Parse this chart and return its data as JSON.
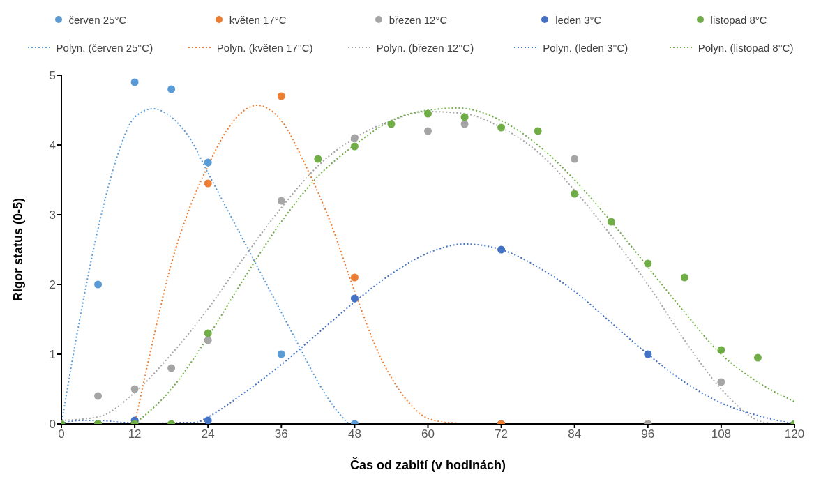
{
  "chart_data": {
    "type": "scatter",
    "xlabel": "Čas od zabití (v hodinách)",
    "ylabel": "Rigor status (0-5)",
    "xlim": [
      0,
      120
    ],
    "xticks": [
      0,
      12,
      24,
      36,
      48,
      60,
      72,
      84,
      96,
      108,
      120
    ],
    "ylim": [
      0,
      5
    ],
    "yticks": [
      0,
      1,
      2,
      3,
      4,
      5
    ],
    "grid": false,
    "legend": "top",
    "marker": "circle",
    "series": [
      {
        "name": "červen 25°C",
        "color": "#5b9bd5",
        "x": [
          6,
          12,
          18,
          24,
          36,
          48,
          72
        ],
        "values": [
          2.0,
          4.9,
          4.8,
          3.75,
          1.0,
          0,
          0
        ]
      },
      {
        "name": "květen 17°C",
        "color": "#ed7d31",
        "x": [
          6,
          24,
          36,
          48,
          72,
          96
        ],
        "values": [
          0,
          3.45,
          4.7,
          2.1,
          0,
          0
        ]
      },
      {
        "name": "březen 12°C",
        "color": "#a5a5a5",
        "x": [
          6,
          12,
          18,
          24,
          36,
          48,
          60,
          66,
          84,
          96,
          108
        ],
        "values": [
          0.4,
          0.5,
          0.8,
          1.2,
          3.2,
          4.1,
          4.2,
          4.3,
          3.8,
          0,
          0.6
        ]
      },
      {
        "name": "leden 3°C",
        "color": "#4472c4",
        "x": [
          6,
          12,
          24,
          48,
          72,
          96,
          120
        ],
        "values": [
          0,
          0.05,
          0.05,
          1.8,
          2.5,
          1.0,
          0
        ]
      },
      {
        "name": "listopad 8°C",
        "color": "#70ad47",
        "x": [
          0,
          6,
          12,
          18,
          24,
          42,
          48,
          54,
          60,
          66,
          72,
          78,
          84,
          90,
          96,
          102,
          108,
          114,
          120
        ],
        "values": [
          0,
          0,
          0,
          0,
          1.3,
          3.8,
          3.98,
          4.3,
          4.45,
          4.4,
          4.25,
          4.2,
          3.3,
          2.9,
          2.3,
          2.1,
          1.06,
          0.95,
          0
        ]
      },
      {
        "name": "Polyn. (červen 25°C)",
        "type": "line",
        "line_style": "dotted",
        "marker": "none",
        "color": "#5b9bd5",
        "x": [
          0,
          3,
          6,
          9,
          12,
          15,
          18,
          21,
          24,
          27,
          30,
          33,
          36,
          39,
          42,
          45,
          47
        ],
        "values": [
          0,
          1.5,
          2.8,
          3.8,
          4.4,
          4.52,
          4.4,
          4.1,
          3.6,
          3.1,
          2.6,
          2.1,
          1.6,
          1.1,
          0.6,
          0.2,
          0
        ]
      },
      {
        "name": "Polyn. (květen 17°C)",
        "type": "line",
        "line_style": "dotted",
        "marker": "none",
        "color": "#ed7d31",
        "x": [
          12,
          15,
          18,
          21,
          24,
          27,
          30,
          32,
          36,
          40,
          44,
          48,
          52,
          56,
          60,
          65
        ],
        "values": [
          0,
          1.2,
          2.3,
          3.1,
          3.7,
          4.2,
          4.5,
          4.57,
          4.35,
          3.7,
          2.9,
          1.9,
          1.0,
          0.4,
          0.08,
          0
        ]
      },
      {
        "name": "Polyn. (březen 12°C)",
        "type": "line",
        "line_style": "dotted",
        "marker": "none",
        "color": "#a5a5a5",
        "x": [
          0,
          6,
          12,
          18,
          24,
          30,
          36,
          42,
          48,
          54,
          60,
          66,
          72,
          78,
          84,
          90,
          96,
          102,
          108,
          114,
          116
        ],
        "values": [
          0.05,
          0.1,
          0.45,
          1.0,
          1.65,
          2.4,
          3.1,
          3.7,
          4.1,
          4.35,
          4.48,
          4.45,
          4.25,
          3.9,
          3.35,
          2.7,
          2.0,
          1.2,
          0.5,
          0.05,
          0
        ]
      },
      {
        "name": "Polyn. (leden 3°C)",
        "type": "line",
        "line_style": "dotted",
        "marker": "none",
        "color": "#4472c4",
        "x": [
          0,
          3,
          6,
          10,
          14,
          22,
          24,
          30,
          36,
          42,
          48,
          54,
          60,
          66,
          72,
          78,
          84,
          90,
          96,
          102,
          108,
          114,
          120
        ],
        "values": [
          0,
          0.05,
          0.05,
          0.02,
          0,
          0.02,
          0.1,
          0.45,
          0.85,
          1.3,
          1.75,
          2.15,
          2.45,
          2.58,
          2.5,
          2.25,
          1.9,
          1.45,
          1.0,
          0.6,
          0.3,
          0.12,
          0
        ]
      },
      {
        "name": "Polyn. (listopad 8°C)",
        "type": "line",
        "line_style": "dotted",
        "marker": "none",
        "color": "#70ad47",
        "x": [
          12,
          18,
          24,
          30,
          36,
          42,
          48,
          54,
          60,
          65,
          72,
          78,
          84,
          90,
          96,
          102,
          108,
          114,
          120
        ],
        "values": [
          0,
          0.5,
          1.25,
          2.1,
          2.9,
          3.55,
          4.0,
          4.35,
          4.5,
          4.53,
          4.35,
          4.0,
          3.5,
          2.9,
          2.25,
          1.6,
          1.0,
          0.6,
          0.32
        ]
      }
    ]
  }
}
